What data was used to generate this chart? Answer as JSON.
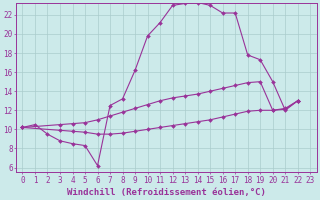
{
  "background_color": "#cceaea",
  "grid_color": "#aacccc",
  "line_color": "#993399",
  "marker": "D",
  "markersize": 2.0,
  "linewidth": 0.8,
  "xlabel": "Windchill (Refroidissement éolien,°C)",
  "xlabel_fontsize": 6.5,
  "tick_fontsize": 5.5,
  "xlim": [
    -0.5,
    23.5
  ],
  "ylim": [
    5.5,
    23.2
  ],
  "xticks": [
    0,
    1,
    2,
    3,
    4,
    5,
    6,
    7,
    8,
    9,
    10,
    11,
    12,
    13,
    14,
    15,
    16,
    17,
    18,
    19,
    20,
    21,
    22,
    23
  ],
  "yticks": [
    6,
    8,
    10,
    12,
    14,
    16,
    18,
    20,
    22
  ],
  "series1_x": [
    0,
    1,
    2,
    3,
    4,
    5,
    6,
    7,
    8,
    9,
    10,
    11,
    12,
    13,
    14,
    15,
    16,
    17,
    18,
    19,
    20,
    21,
    22
  ],
  "series1_y": [
    10.2,
    10.5,
    9.5,
    8.8,
    8.5,
    8.3,
    6.2,
    12.5,
    13.2,
    16.2,
    19.8,
    21.2,
    23.0,
    23.2,
    23.3,
    23.0,
    22.2,
    22.2,
    17.8,
    17.3,
    15.0,
    12.0,
    13.0
  ],
  "series2_x": [
    0,
    3,
    4,
    5,
    6,
    7,
    8,
    9,
    10,
    11,
    12,
    13,
    14,
    15,
    16,
    17,
    18,
    19,
    20,
    21,
    22
  ],
  "series2_y": [
    10.2,
    10.5,
    10.6,
    10.7,
    11.0,
    11.4,
    11.8,
    12.2,
    12.6,
    13.0,
    13.3,
    13.5,
    13.7,
    14.0,
    14.3,
    14.6,
    14.9,
    15.0,
    12.0,
    12.2,
    13.0
  ],
  "series3_x": [
    0,
    3,
    4,
    5,
    6,
    7,
    8,
    9,
    10,
    11,
    12,
    13,
    14,
    15,
    16,
    17,
    18,
    19,
    20,
    21,
    22
  ],
  "series3_y": [
    10.2,
    9.9,
    9.8,
    9.7,
    9.5,
    9.5,
    9.6,
    9.8,
    10.0,
    10.2,
    10.4,
    10.6,
    10.8,
    11.0,
    11.3,
    11.6,
    11.9,
    12.0,
    12.0,
    12.1,
    13.0
  ]
}
